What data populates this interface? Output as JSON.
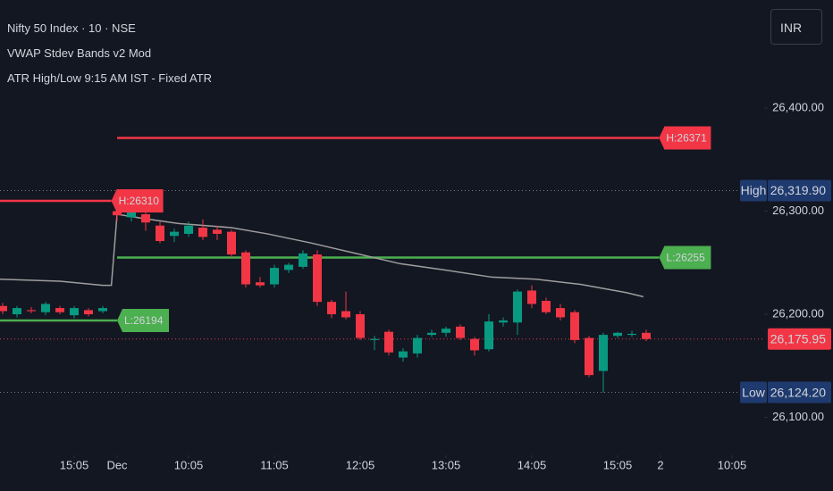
{
  "header": {
    "symbol": "Nifty 50 Index · 10 · NSE",
    "indicators": [
      "VWAP Stdev Bands v2 Mod",
      "ATR High/Low 9:15 AM IST - Fixed ATR"
    ],
    "currency": "INR"
  },
  "chart_data": {
    "type": "candlestick",
    "x": [
      -8,
      -7,
      -6,
      -5,
      -4,
      -3,
      -2,
      -1,
      0,
      1,
      2,
      3,
      4,
      5,
      6,
      7,
      8,
      9,
      10,
      11,
      12,
      13,
      14,
      15,
      16,
      17,
      18,
      19,
      20,
      21,
      22,
      23,
      24,
      25,
      26,
      27,
      28,
      29,
      30,
      31,
      32,
      33,
      34,
      35,
      36,
      37
    ],
    "open": [
      26208,
      26200,
      26204,
      26202,
      26206,
      26199,
      26204,
      26203,
      26300,
      26294,
      26297,
      26286,
      26276,
      26278,
      26284,
      26282,
      26280,
      26260,
      26231,
      26229,
      26243,
      26246,
      26258,
      26212,
      26203,
      26200,
      26175,
      26183,
      26158,
      26162,
      26180,
      26182,
      26188,
      26176,
      26166,
      26192,
      26192,
      26223,
      26213,
      26206,
      26202,
      26177,
      26145,
      26179,
      26180,
      26182
    ],
    "high": [
      26211,
      26208,
      26207,
      26212,
      26208,
      26208,
      26206,
      26208,
      26310,
      26310,
      26300,
      26290,
      26283,
      26290,
      26292,
      26286,
      26282,
      26262,
      26236,
      26248,
      26250,
      26262,
      26262,
      26214,
      26222,
      26203,
      26179,
      26185,
      26167,
      26180,
      26185,
      26188,
      26190,
      26178,
      26200,
      26197,
      26224,
      26228,
      26216,
      26210,
      26204,
      26179,
      26182,
      26183,
      26184,
      26185
    ],
    "low": [
      26200,
      26197,
      26201,
      26199,
      26200,
      26196,
      26198,
      26201,
      26290,
      26290,
      26281,
      26269,
      26270,
      26275,
      26272,
      26272,
      26255,
      26226,
      26226,
      26226,
      26240,
      26244,
      26208,
      26196,
      26195,
      26175,
      26165,
      26160,
      26154,
      26158,
      26178,
      26178,
      26175,
      26160,
      26164,
      26188,
      26180,
      26206,
      26200,
      26194,
      26172,
      26139,
      26124,
      26177,
      26178,
      26174
    ],
    "close": [
      26203,
      26206,
      26203,
      26210,
      26202,
      26206,
      26200,
      26206,
      26296,
      26300,
      26289,
      26271,
      26280,
      26286,
      26275,
      26278,
      26258,
      26229,
      26228,
      26245,
      26248,
      26259,
      26212,
      26200,
      26197,
      26177,
      26176,
      26163,
      26164,
      26177,
      26182,
      26186,
      26177,
      26165,
      26193,
      26194,
      26222,
      26210,
      26202,
      26197,
      26175,
      26141,
      26180,
      26182,
      26181,
      26176
    ],
    "up_color": "#089981",
    "down_color": "#f23645",
    "xlim": [
      -8.1875,
      45.25
    ],
    "xticks": [
      {
        "value": -3,
        "label": "15:05"
      },
      {
        "value": 0,
        "label": "Dec"
      },
      {
        "value": 5,
        "label": "10:05"
      },
      {
        "value": 11,
        "label": "11:05"
      },
      {
        "value": 17,
        "label": "12:05"
      },
      {
        "value": 23,
        "label": "13:05"
      },
      {
        "value": 29,
        "label": "14:05"
      },
      {
        "value": 35,
        "label": "15:05"
      },
      {
        "value": 38,
        "label": "2"
      },
      {
        "value": 43,
        "label": "10:05"
      }
    ],
    "ylim": [
      26063.2,
      26504.8
    ],
    "yticks": [
      {
        "value": 26100,
        "label": "26,100.00"
      },
      {
        "value": 26200,
        "label": "26,200.00"
      },
      {
        "value": 26300,
        "label": "26,300.00"
      },
      {
        "value": 26400,
        "label": "26,400.00"
      }
    ],
    "vwap": {
      "color": "#9e9e9e",
      "x": [
        -8.1875,
        -4,
        -1,
        -0.4,
        0,
        1.8,
        4.3,
        8,
        10.5,
        13.6,
        16.7,
        19.8,
        22.9,
        26.2,
        29.3,
        32.4,
        35.6,
        36.8
      ],
      "values": [
        26234,
        26232,
        26228,
        26228,
        26297,
        26293,
        26288,
        26284,
        26278,
        26269,
        26259,
        26249,
        26243,
        26236,
        26234,
        26229,
        26221,
        26217
      ]
    },
    "levels": [
      {
        "label": "H:26371",
        "value": 26371,
        "x": [
          0,
          37.9
        ],
        "color": "#f23645"
      },
      {
        "label": "L:26255",
        "value": 26255,
        "x": [
          0,
          37.9
        ],
        "color": "#4caf50"
      },
      {
        "label": "H:26310",
        "value": 26310,
        "x": [
          -8.1875,
          -0.4
        ],
        "color": "#f23645"
      },
      {
        "label": "L:26194",
        "value": 26194,
        "x": [
          -8.1875,
          0
        ],
        "color": "#4caf50"
      }
    ],
    "price_labels": [
      {
        "name": "High",
        "value": 26319.9,
        "label": "26,319.90",
        "color": "#1e3a6e"
      },
      {
        "value": 26175.95,
        "label": "26,175.95",
        "color": "#f23645"
      },
      {
        "name": "Low",
        "value": 26124.2,
        "label": "26,124.20",
        "color": "#1e3a6e"
      }
    ]
  }
}
